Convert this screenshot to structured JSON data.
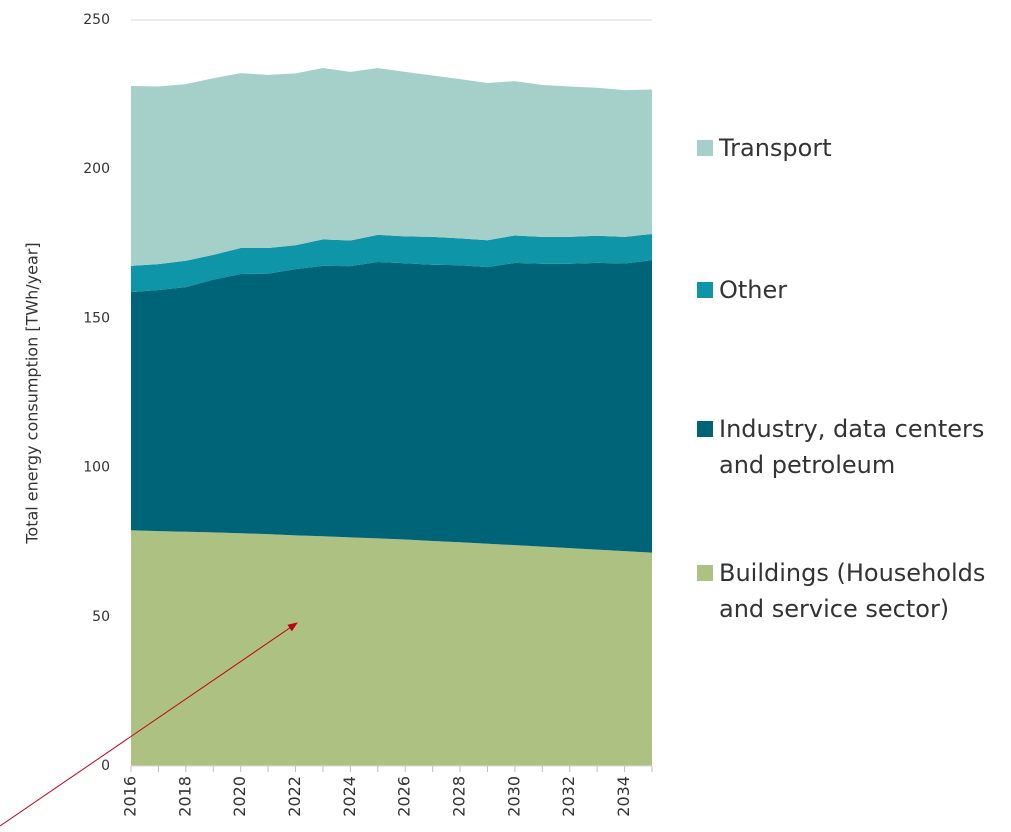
{
  "chart_data": {
    "type": "stacked-area",
    "y_label": "Total energy consumption [TWh/year]",
    "x": [
      2016,
      2017,
      2018,
      2019,
      2020,
      2021,
      2022,
      2023,
      2024,
      2025,
      2026,
      2027,
      2028,
      2029,
      2030,
      2031,
      2032,
      2033,
      2034,
      2035
    ],
    "xlim": [
      2016,
      2035
    ],
    "xticks": [
      2016,
      2018,
      2020,
      2022,
      2024,
      2026,
      2028,
      2030,
      2032,
      2034
    ],
    "ylim": [
      0,
      250
    ],
    "yticks": [
      0,
      50,
      100,
      150,
      200,
      250
    ],
    "grid": true,
    "legend": "right",
    "series": [
      {
        "name": "Buildings (Households and service sector)",
        "color": "#adc182",
        "values": [
          79,
          78.7,
          78.5,
          78.3,
          78,
          77.7,
          77.3,
          77,
          76.6,
          76.3,
          75.9,
          75.4,
          75,
          74.5,
          74,
          73.5,
          73,
          72.5,
          72,
          71.5
        ]
      },
      {
        "name": "Industry, data centers and petroleum",
        "color": "#006479",
        "values": [
          79.8,
          80.8,
          82,
          84.7,
          86.9,
          87.3,
          89.2,
          90.6,
          90.9,
          92.6,
          92.6,
          92.6,
          92.8,
          92.7,
          94.6,
          94.8,
          95.3,
          96.1,
          96.4,
          98
        ]
      },
      {
        "name": "Other",
        "color": "#0e95a8",
        "values": [
          8.8,
          8.7,
          8.8,
          8.3,
          8.7,
          8.6,
          8,
          8.9,
          8.6,
          9.1,
          9,
          9.3,
          9,
          9,
          9.2,
          9,
          9,
          9.1,
          8.9,
          8.8
        ]
      },
      {
        "name": "Transport",
        "color": "#a5d0c9",
        "values": [
          60.3,
          59.5,
          59.2,
          59.2,
          58.6,
          58,
          57.6,
          57.4,
          56.5,
          55.9,
          55.1,
          54.1,
          53.4,
          52.7,
          51.7,
          50.9,
          50.4,
          49.6,
          49.2,
          48.4
        ]
      }
    ]
  }
}
